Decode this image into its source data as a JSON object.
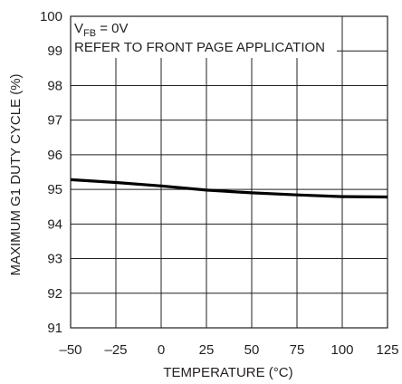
{
  "chart_data": {
    "type": "line",
    "title": "",
    "xlabel": "TEMPERATURE (°C)",
    "ylabel": "MAXIMUM G1 DUTY CYCLE (%)",
    "xlim": [
      -50,
      125
    ],
    "ylim": [
      91,
      100
    ],
    "x_ticks": [
      -50,
      -25,
      0,
      25,
      50,
      75,
      100,
      125
    ],
    "y_ticks": [
      91,
      92,
      93,
      94,
      95,
      96,
      97,
      98,
      99,
      100
    ],
    "x_tick_labels": [
      "–50",
      "–25",
      "0",
      "25",
      "50",
      "75",
      "100",
      "125"
    ],
    "y_tick_labels": [
      "91",
      "92",
      "93",
      "94",
      "95",
      "96",
      "97",
      "98",
      "99",
      "100"
    ],
    "grid": true,
    "annotations": {
      "condition_main": "V",
      "condition_sub": "FB",
      "condition_rest": " = 0V",
      "note": "REFER TO FRONT PAGE APPLICATION"
    },
    "series": [
      {
        "x": [
          -50,
          -25,
          0,
          25,
          50,
          75,
          100,
          125
        ],
        "y": [
          95.28,
          95.2,
          95.1,
          94.98,
          94.9,
          94.84,
          94.79,
          94.78
        ]
      }
    ],
    "colors": {
      "line": "#000000",
      "grid": "#231f20",
      "text": "#231f20"
    }
  }
}
